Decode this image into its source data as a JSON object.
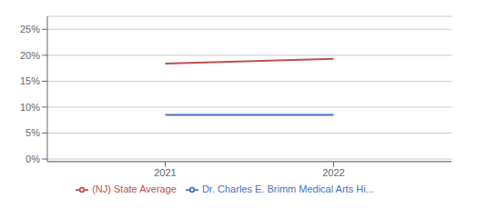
{
  "chart_data": {
    "type": "line",
    "x": [
      2021,
      2022
    ],
    "series": [
      {
        "name": "Dr. Charles E. Brimm Medical Arts Hi...",
        "color": "#4472C4",
        "values": [
          0.085,
          0.085
        ]
      },
      {
        "name": "(NJ) State Average",
        "color": "#C0504D",
        "values": [
          0.184,
          0.193
        ]
      }
    ],
    "xlim": [
      2020.3,
      2022.7
    ],
    "xticks": [
      2021,
      2022
    ],
    "ylim": [
      -0.005,
      0.275
    ],
    "yticks": [
      {
        "value": 0.0,
        "label": "0%"
      },
      {
        "value": 0.05,
        "label": "5%"
      },
      {
        "value": 0.1,
        "label": "10%"
      },
      {
        "value": 0.15,
        "label": "15%"
      },
      {
        "value": 0.2,
        "label": "20%"
      },
      {
        "value": 0.25,
        "label": "25%"
      }
    ],
    "grid": true,
    "legend": "bottom"
  }
}
